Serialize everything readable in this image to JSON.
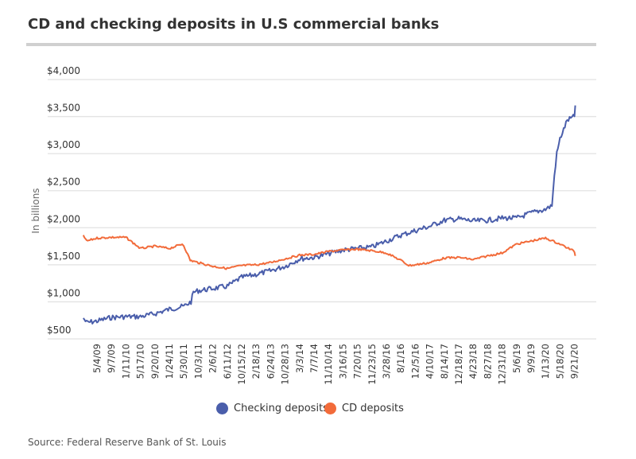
{
  "chart_data": {
    "type": "line",
    "title": "CD and checking deposits in U.S commercial banks",
    "ylabel": "In billions",
    "xlabel": "",
    "ylim": [
      500,
      4000
    ],
    "yticks": [
      "$500",
      "$1,000",
      "$1,500",
      "$2,000",
      "$2,500",
      "$3,000",
      "$3,500",
      "$4,000"
    ],
    "ytick_values": [
      500,
      1000,
      1500,
      2000,
      2500,
      3000,
      3500,
      4000
    ],
    "xticks": [
      "5/4/09",
      "9/7/09",
      "1/11/10",
      "5/17/10",
      "9/20/10",
      "1/24/11",
      "5/30/11",
      "10/3/11",
      "2/6/12",
      "6/11/12",
      "10/15/12",
      "2/18/13",
      "6/24/13",
      "10/28/13",
      "3/3/14",
      "7/7/14",
      "11/10/14",
      "3/16/15",
      "7/20/15",
      "11/23/15",
      "3/28/16",
      "8/1/16",
      "12/5/16",
      "4/10/17",
      "8/14/17",
      "12/18/17",
      "4/23/18",
      "8/27/18",
      "12/31/18",
      "5/6/19",
      "9/9/19",
      "1/13/20",
      "5/18/20",
      "9/21/20"
    ],
    "grid": true,
    "legend_position": "bottom",
    "series": [
      {
        "name": "Checking deposits",
        "color": "#4a5eab",
        "x": [
          "2009-01-05",
          "2009-02-02",
          "2009-05-04",
          "2009-09-07",
          "2010-01-11",
          "2010-05-17",
          "2010-09-20",
          "2011-01-24",
          "2011-05-30",
          "2011-08-01",
          "2011-08-22",
          "2011-10-03",
          "2012-02-06",
          "2012-06-11",
          "2012-10-15",
          "2013-02-18",
          "2013-06-24",
          "2013-10-28",
          "2014-03-03",
          "2014-07-07",
          "2014-11-10",
          "2015-03-16",
          "2015-07-20",
          "2015-11-23",
          "2016-03-28",
          "2016-08-01",
          "2016-12-05",
          "2017-04-10",
          "2017-08-14",
          "2017-12-18",
          "2018-04-23",
          "2018-08-27",
          "2018-12-31",
          "2019-05-06",
          "2019-09-09",
          "2020-01-13",
          "2020-03-09",
          "2020-03-30",
          "2020-04-20",
          "2020-05-18",
          "2020-07-20",
          "2020-09-21",
          "2020-09-28"
        ],
        "values": [
          780,
          720,
          740,
          790,
          800,
          800,
          840,
          900,
          940,
          1000,
          1130,
          1150,
          1180,
          1210,
          1330,
          1370,
          1420,
          1480,
          1580,
          1600,
          1650,
          1700,
          1720,
          1740,
          1820,
          1900,
          1960,
          2020,
          2100,
          2120,
          2090,
          2100,
          2130,
          2130,
          2200,
          2250,
          2300,
          2700,
          3000,
          3200,
          3450,
          3500,
          3650
        ]
      },
      {
        "name": "CD deposits",
        "color": "#f26b3a",
        "x": [
          "2009-01-05",
          "2009-02-02",
          "2009-05-04",
          "2009-09-07",
          "2010-01-11",
          "2010-05-17",
          "2010-09-20",
          "2011-01-24",
          "2011-05-16",
          "2011-05-30",
          "2011-07-25",
          "2011-10-03",
          "2012-02-06",
          "2012-06-11",
          "2012-10-15",
          "2013-02-18",
          "2013-06-24",
          "2013-10-28",
          "2014-03-03",
          "2014-07-07",
          "2014-11-10",
          "2015-03-16",
          "2015-07-20",
          "2015-11-23",
          "2016-03-28",
          "2016-08-01",
          "2016-10-10",
          "2016-12-05",
          "2017-04-10",
          "2017-08-14",
          "2017-12-18",
          "2018-04-23",
          "2018-08-27",
          "2018-12-31",
          "2019-05-06",
          "2019-09-09",
          "2020-01-13",
          "2020-05-18",
          "2020-09-21",
          "2020-09-28"
        ],
        "values": [
          1900,
          1820,
          1860,
          1870,
          1870,
          1720,
          1750,
          1720,
          1780,
          1760,
          1560,
          1530,
          1480,
          1450,
          1490,
          1500,
          1530,
          1580,
          1630,
          1640,
          1680,
          1700,
          1710,
          1690,
          1660,
          1560,
          1490,
          1500,
          1530,
          1590,
          1600,
          1570,
          1620,
          1660,
          1780,
          1820,
          1860,
          1780,
          1680,
          1620
        ]
      }
    ]
  },
  "source": "Source: Federal Reserve Bank of St. Louis"
}
